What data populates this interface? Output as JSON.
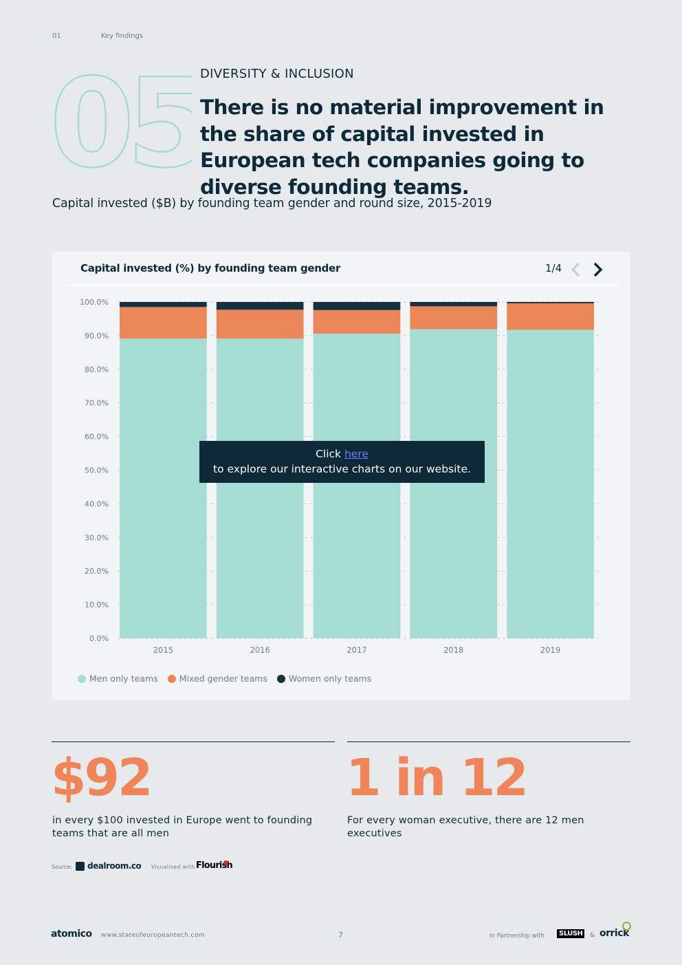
{
  "header": {
    "page_number": "01",
    "section": "Key findings"
  },
  "finding": {
    "number": "05",
    "kicker": "DIVERSITY & INCLUSION",
    "headline": "There is no material improvement in the share of capital invested in European tech companies going to diverse founding teams."
  },
  "subtitle": "Capital invested ($B) by founding team gender and round size, 2015-2019",
  "chart_toolbar": {
    "pager": "1/4"
  },
  "overlay": {
    "line1_prefix": "Click ",
    "link_text": "here",
    "line2": "to explore our interactive charts on our website."
  },
  "chart_data": {
    "type": "bar",
    "stacked": true,
    "title": "Capital invested (%) by founding team gender",
    "categories": [
      "2015",
      "2016",
      "2017",
      "2018",
      "2019"
    ],
    "series": [
      {
        "name": "Men only teams",
        "color": "#a5ddd4",
        "values": [
          89.1,
          89.1,
          90.6,
          91.9,
          91.7
        ]
      },
      {
        "name": "Mixed gender teams",
        "color": "#ea8658",
        "values": [
          9.4,
          8.6,
          7.0,
          6.8,
          7.9
        ]
      },
      {
        "name": "Women only teams",
        "color": "#163241",
        "values": [
          1.5,
          2.3,
          2.4,
          1.3,
          0.4
        ]
      }
    ],
    "ylim": [
      0,
      100
    ],
    "yticks": [
      "0.0%",
      "10.0%",
      "20.0%",
      "30.0%",
      "40.0%",
      "50.0%",
      "60.0%",
      "70.0%",
      "80.0%",
      "90.0%",
      "100.0%"
    ],
    "grid": true,
    "legend_position": "bottom-left",
    "xlabel": "",
    "ylabel": ""
  },
  "stats": [
    {
      "value": "$92",
      "description": "in every $100 invested in Europe went to founding teams that are all men"
    },
    {
      "value": "1 in 12",
      "description": "For every woman executive, there are 12 men executives"
    }
  ],
  "credits": {
    "source_label": "Source:",
    "source_name": "dealroom.co",
    "visualised_label": "Visualised with",
    "visualised_name": "Flourish"
  },
  "footer": {
    "logo": "atomico",
    "url": "www.stateofeuropeantech.com",
    "page": "7",
    "partner_label": "In Partnership with",
    "partner1": "SLUSH",
    "amp": "&",
    "partner2": "orrick"
  }
}
